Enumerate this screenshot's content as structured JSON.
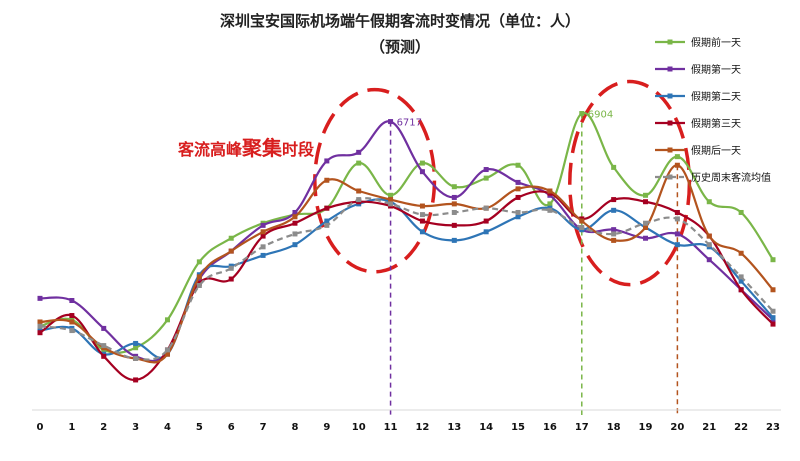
{
  "chart_data": {
    "type": "line",
    "title_line1": "深圳宝安国际机场端午假期客流时变情况（单位：人）",
    "title_line2": "（预测）",
    "annotation": {
      "prefix": "客流高峰",
      "highlight": "聚集",
      "suffix": "时段"
    },
    "x": [
      0,
      1,
      2,
      3,
      4,
      5,
      6,
      7,
      8,
      9,
      10,
      11,
      12,
      13,
      14,
      15,
      16,
      17,
      18,
      19,
      20,
      21,
      22,
      23
    ],
    "x_tick_labels": [
      "0",
      "1",
      "2",
      "3",
      "4",
      "5",
      "6",
      "7",
      "8",
      "9",
      "10",
      "11",
      "12",
      "13",
      "14",
      "15",
      "16",
      "17",
      "18",
      "19",
      "20",
      "21",
      "22",
      "23"
    ],
    "ylim": [
      0,
      8500
    ],
    "grid": false,
    "legend_position": "right",
    "series": [
      {
        "name": "假期前一天",
        "color": "#7ab648",
        "dashed": false,
        "values": [
          1950,
          2100,
          1400,
          1450,
          2100,
          3450,
          4000,
          4350,
          4550,
          4700,
          5750,
          5000,
          5750,
          5200,
          5400,
          5700,
          4800,
          6904,
          5650,
          5000,
          5900,
          4850,
          4600,
          3500
        ]
      },
      {
        "name": "假期第一天",
        "color": "#7030a0",
        "dashed": false,
        "values": [
          2600,
          2550,
          1900,
          1250,
          1350,
          3050,
          3700,
          4300,
          4600,
          5800,
          6000,
          6717,
          5550,
          4950,
          5600,
          5300,
          5000,
          4200,
          4200,
          4000,
          4100,
          3500,
          2800,
          2100
        ]
      },
      {
        "name": "假期第二天",
        "color": "#2e75b6",
        "dashed": false,
        "values": [
          1850,
          1900,
          1300,
          1550,
          1300,
          3150,
          3350,
          3600,
          3850,
          4400,
          4800,
          4850,
          4150,
          3950,
          4150,
          4500,
          4700,
          4200,
          4650,
          4250,
          3850,
          3800,
          3000,
          2150
        ]
      },
      {
        "name": "假期第三天",
        "color": "#a50021",
        "dashed": false,
        "values": [
          1800,
          2200,
          1250,
          700,
          1400,
          2950,
          3050,
          4050,
          4350,
          4700,
          4850,
          4750,
          4400,
          4300,
          4400,
          4950,
          5050,
          4450,
          4900,
          4850,
          4600,
          4050,
          2800,
          2000
        ]
      },
      {
        "name": "假期后一天",
        "color": "#b3541e",
        "dashed": false,
        "values": [
          2050,
          2050,
          1450,
          1200,
          1300,
          3100,
          3700,
          4150,
          4500,
          5350,
          5100,
          4900,
          4750,
          4800,
          4700,
          5150,
          5100,
          4400,
          3950,
          4250,
          5700,
          4050,
          3650,
          2800
        ]
      },
      {
        "name": "历史周末客流均值",
        "color": "#8c8c8c",
        "dashed": true,
        "values": [
          1950,
          1850,
          1500,
          1200,
          1400,
          2900,
          3300,
          3800,
          4100,
          4300,
          4900,
          4800,
          4550,
          4600,
          4700,
          4600,
          4650,
          4250,
          4100,
          4350,
          4450,
          3850,
          3100,
          2300
        ]
      }
    ],
    "data_labels": [
      {
        "series": 1,
        "index": 11,
        "text": "6717"
      },
      {
        "series": 0,
        "index": 17,
        "text": "6904"
      }
    ],
    "reference_lines": [
      {
        "index": 11,
        "series": 1
      },
      {
        "index": 17,
        "series": 0
      },
      {
        "index": 20,
        "series": 4
      }
    ],
    "highlight_ellipses": [
      {
        "from": 9,
        "to": 12
      },
      {
        "from": 17,
        "to": 20
      }
    ]
  }
}
